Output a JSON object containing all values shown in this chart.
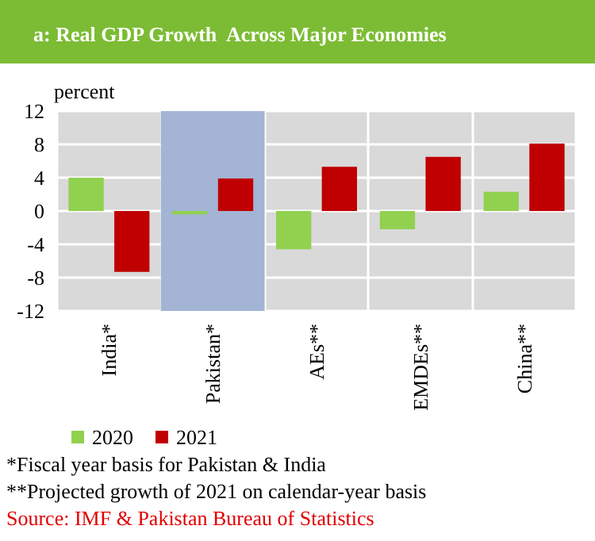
{
  "chart_data": {
    "type": "bar",
    "title": "a: Real GDP Growth  Across Major Economies",
    "ylabel": "percent",
    "categories": [
      "India*",
      "Pakistan*",
      "AEs**",
      "EMDEs**",
      "China**"
    ],
    "series": [
      {
        "name": "2020",
        "color": "#92d050",
        "values": [
          4.0,
          -0.4,
          -4.6,
          -2.2,
          2.3
        ]
      },
      {
        "name": "2021",
        "color": "#c00000",
        "values": [
          -7.3,
          3.9,
          5.3,
          6.5,
          8.1
        ]
      }
    ],
    "ylim": [
      -12,
      12
    ],
    "yticks": [
      -12,
      -8,
      -4,
      0,
      4,
      8,
      12
    ],
    "grid": true,
    "legend": "bottom left",
    "bands": [
      {
        "axis": "x",
        "from": "Pakistan*",
        "to": "Pakistan*",
        "color": "#a3b4d4"
      }
    ],
    "annotations": [
      "*Fiscal year basis for Pakistan & India",
      "**Projected growth of 2021 on calendar-year basis",
      "Source: IMF & Pakistan Bureau of Statistics"
    ]
  }
}
